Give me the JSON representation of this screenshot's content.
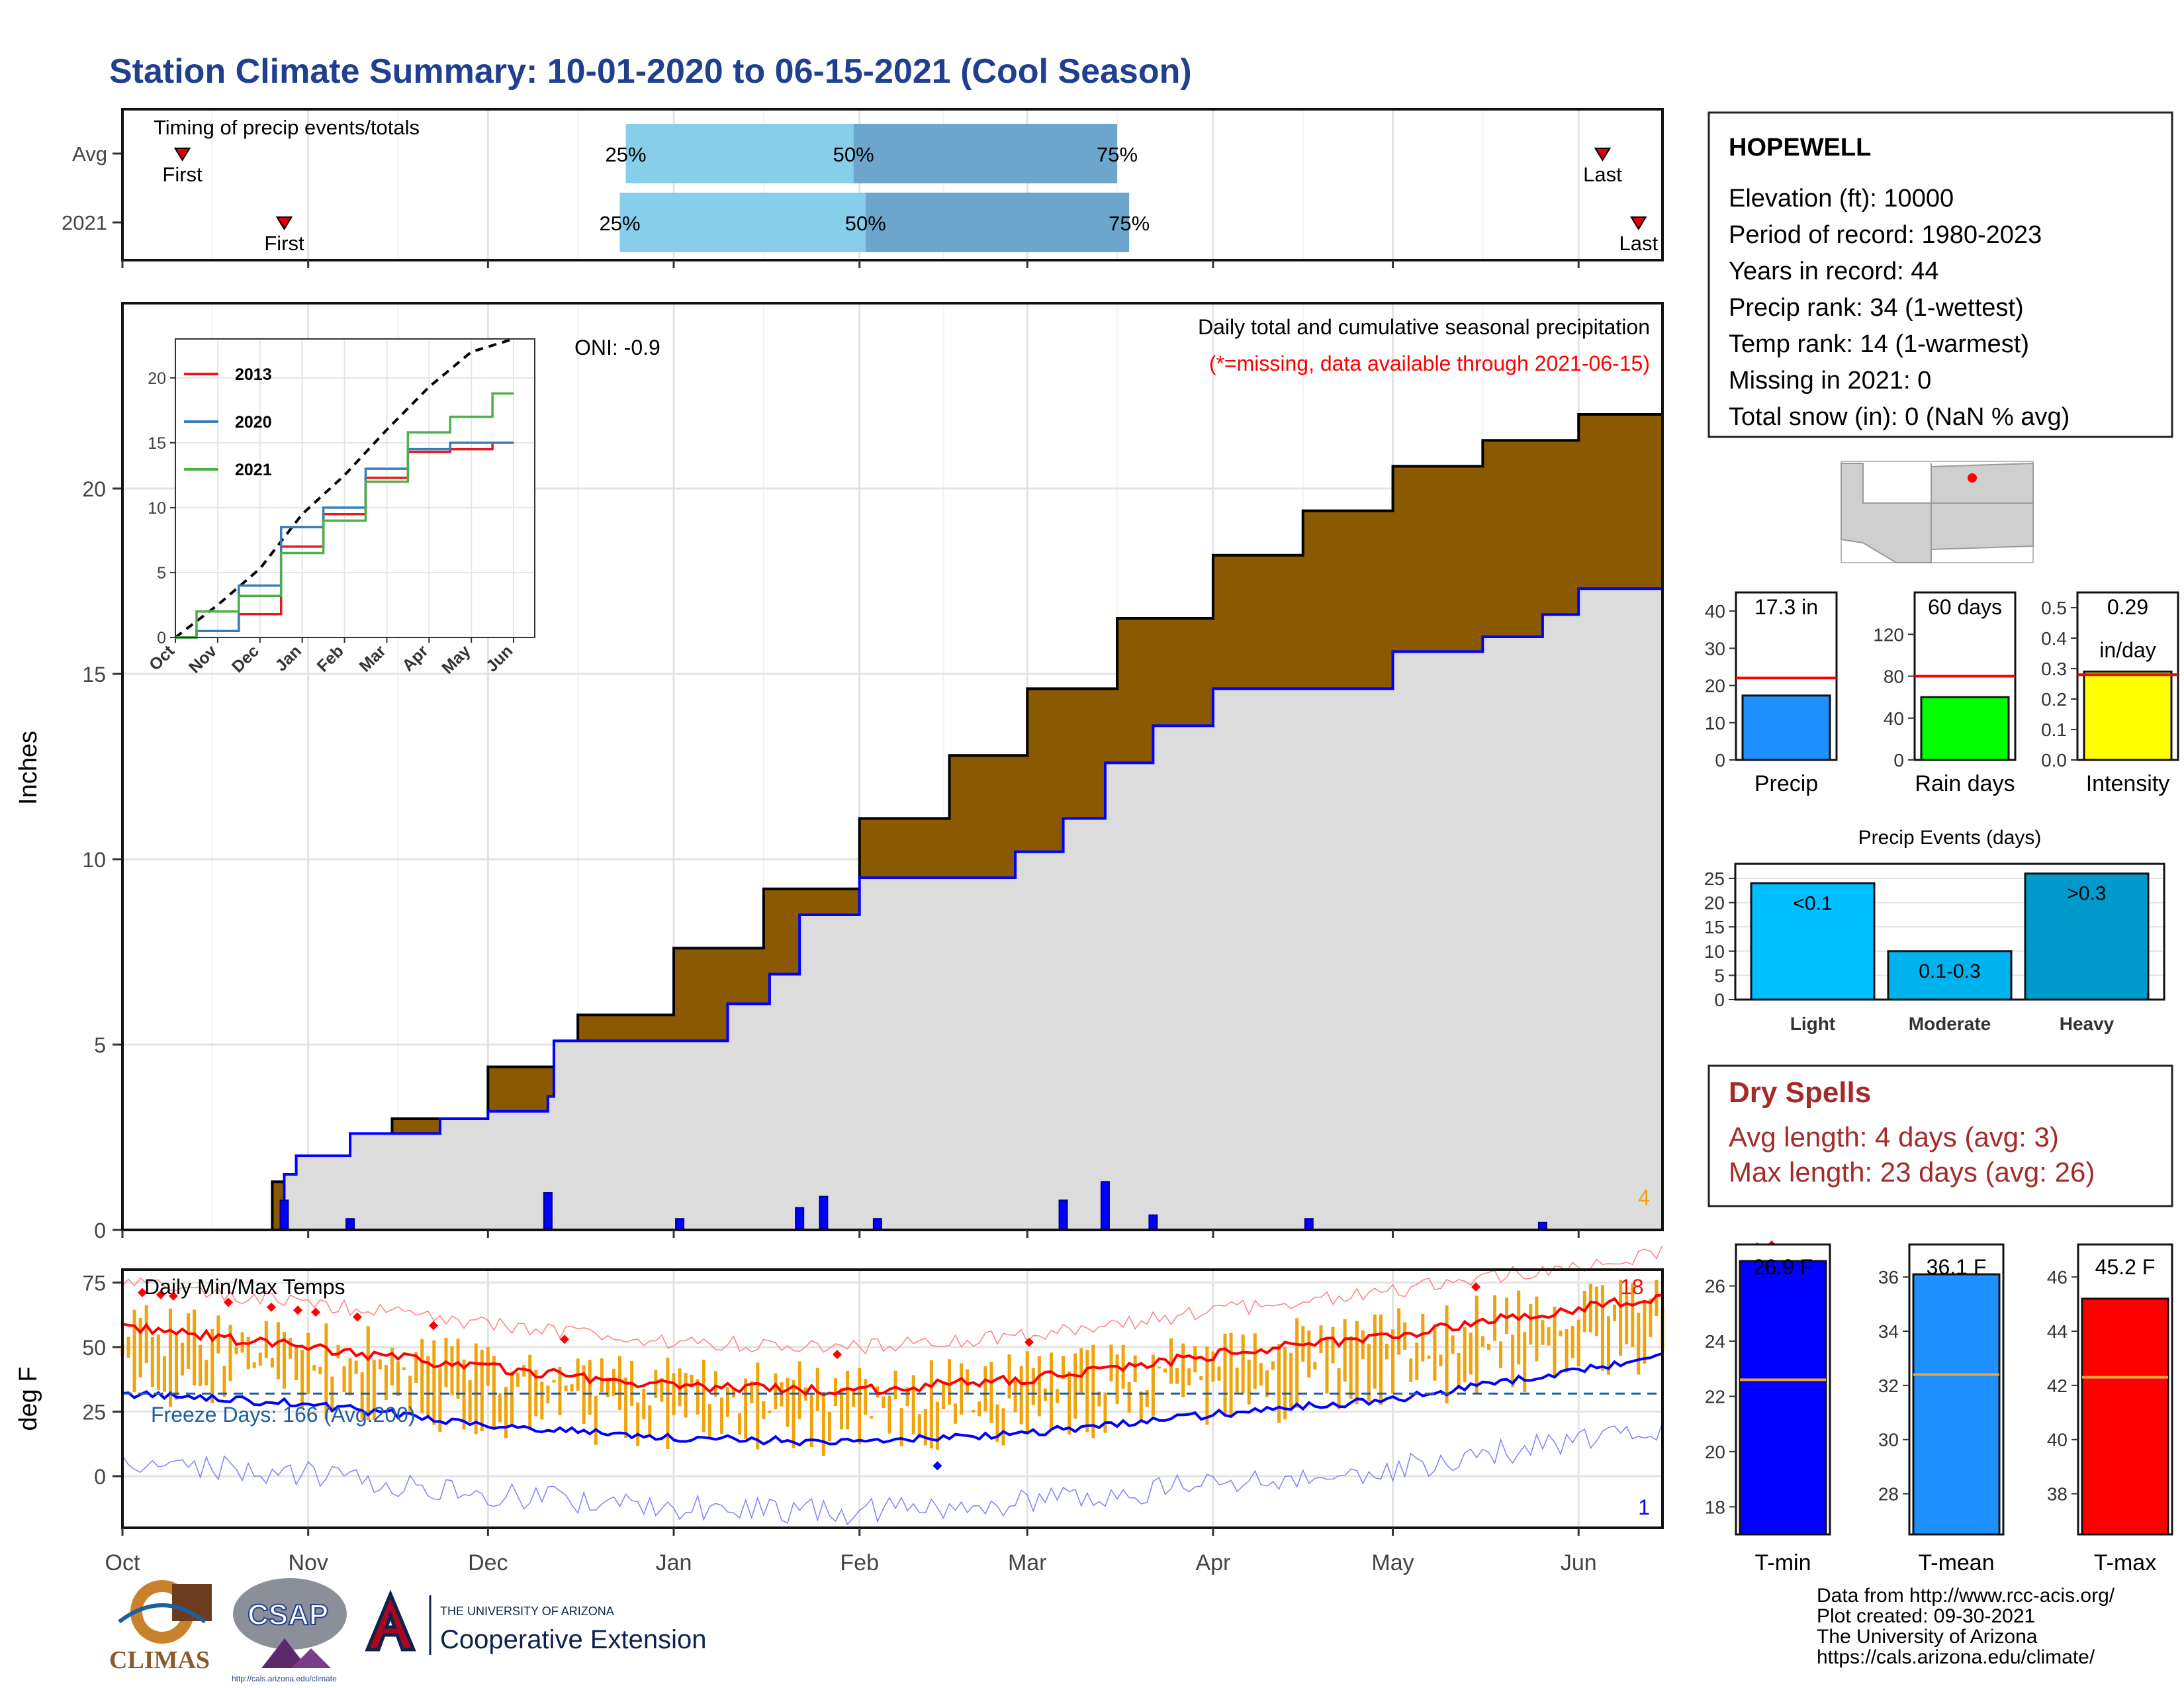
{
  "title": "Station Climate Summary: 10-01-2020 to 06-15-2021 (Cool Season)",
  "colors": {
    "title": "#1f3f8f",
    "precip_area": "#8b5a00",
    "precip_obs": "#dcdcdc",
    "obs_line": "#0000ff",
    "timing_light": "#87ceeb",
    "timing_dark": "#6ca6cd",
    "tmax": "#ff0000",
    "tmin": "#0000ff",
    "temp_bar": "#f0a30a",
    "dry": "#a52a2a",
    "freeze_line": "#1f5fa0"
  },
  "months": [
    "Oct",
    "Nov",
    "Dec",
    "Jan",
    "Feb",
    "Mar",
    "Apr",
    "May",
    "Jun"
  ],
  "timing": {
    "header": "Timing of precip events/totals",
    "rows": [
      {
        "label": "Avg",
        "p25": "25%",
        "p50": "50%",
        "p75": "75%",
        "first": "First",
        "last": "Last",
        "first_date": "2020-10-11",
        "p25_date": "2020-12-24",
        "p50_date": "2021-01-31",
        "p75_date": "2021-03-16",
        "last_date": "2021-06-05"
      },
      {
        "label": "2021",
        "p25": "25%",
        "p50": "50%",
        "p75": "75%",
        "first": "First",
        "last": "Last",
        "first_date": "2020-10-28",
        "p25_date": "2020-12-23",
        "p50_date": "2021-02-02",
        "p75_date": "2021-03-18",
        "last_date": "2021-06-11"
      }
    ]
  },
  "precip_panel": {
    "ylabel": "Inches",
    "yticks": [
      0,
      5,
      10,
      15,
      20
    ],
    "oni": "ONI: -0.9",
    "caption": "Daily total and cumulative seasonal precipitation",
    "missing_note": "(*=missing, data available through 2021-06-15)",
    "missing_count": "4"
  },
  "inset": {
    "legend": [
      "2013",
      "2020",
      "2021"
    ],
    "yticks": [
      0,
      5,
      10,
      15,
      20
    ],
    "months": [
      "Oct",
      "Nov",
      "Dec",
      "Jan",
      "Feb",
      "Mar",
      "Apr",
      "May",
      "Jun"
    ]
  },
  "temp_panel": {
    "header": "Daily Min/Max Temps",
    "ylabel": "deg F",
    "yticks": [
      0,
      25,
      50,
      75
    ],
    "freeze": "Freeze Days: 166 (Avg:200)",
    "count_max": "18",
    "count_min": "1"
  },
  "station": {
    "name": "HOPEWELL",
    "lines": [
      "Elevation (ft): 10000",
      "Period of record: 1980-2023",
      "Years in record: 44",
      "Precip rank: 34 (1-wettest)",
      "Temp rank: 14 (1-warmest)",
      "Missing in 2021: 0",
      "Total snow (in): 0 (NaN % avg)"
    ]
  },
  "small_bars": [
    {
      "label": "Precip",
      "value_text": "17.3 in",
      "value": 17.3,
      "avg": 22.0,
      "max": 45,
      "ticks": [
        0,
        10,
        20,
        30,
        40
      ],
      "color": "#1e90ff"
    },
    {
      "label": "Rain days",
      "value_text": "60 days",
      "value": 60,
      "avg": 80,
      "max": 160,
      "ticks": [
        0,
        40,
        80,
        120
      ],
      "color": "#00ff00"
    },
    {
      "label": "Intensity",
      "value_text": "0.29",
      "value_text2": "in/day",
      "value": 0.29,
      "avg": 0.28,
      "max": 0.55,
      "ticks": [
        "0.0",
        "0.1",
        "0.2",
        "0.3",
        "0.4",
        "0.5"
      ],
      "color": "#ffff00"
    }
  ],
  "events": {
    "title": "Precip Events (days)",
    "bars": [
      {
        "label": "Light",
        "inner": "<0.1",
        "value": 24,
        "color": "#00bfff"
      },
      {
        "label": "Moderate",
        "inner": "0.1-0.3",
        "value": 10,
        "color": "#00b2ee"
      },
      {
        "label": "Heavy",
        "inner": ">0.3",
        "value": 26,
        "color": "#009acd"
      }
    ],
    "ticks": [
      0,
      5,
      10,
      15,
      20,
      25
    ]
  },
  "dry": {
    "title": "Dry Spells",
    "avg": "Avg length: 4 days (avg: 3)",
    "max": "Max length: 23 days (avg: 26)"
  },
  "temp_bars": [
    {
      "label": "T-min",
      "value_text": "26.9 F",
      "value": 26.9,
      "avg": 22.6,
      "lo": 17,
      "hi": 27.5,
      "ticks": [
        18,
        20,
        22,
        24,
        26
      ],
      "color": "#0000ff"
    },
    {
      "label": "T-mean",
      "value_text": "36.1 F",
      "value": 36.1,
      "avg": 32.4,
      "lo": 26.5,
      "hi": 37.2,
      "ticks": [
        28,
        30,
        32,
        34,
        36
      ],
      "color": "#1e90ff"
    },
    {
      "label": "T-max",
      "value_text": "45.2 F",
      "value": 45.2,
      "avg": 42.3,
      "lo": 36.5,
      "hi": 47.2,
      "ticks": [
        38,
        40,
        42,
        44,
        46
      ],
      "color": "#ff0000"
    }
  ],
  "footer": {
    "source": "Data from http://www.rcc-acis.org/",
    "created": "Plot created: 09-30-2021",
    "org": "The University of Arizona",
    "url": "https://cals.arizona.edu/climate/"
  },
  "logos": {
    "climas": "CLIMAS",
    "csap": "CSAP",
    "ua_small": "THE UNIVERSITY OF ARIZONA",
    "ua_big": "Cooperative Extension",
    "csap_url": "http://cals.arizona.edu/climate"
  },
  "chart_data": [
    {
      "type": "area",
      "title": "Daily total and cumulative seasonal precipitation",
      "ylabel": "Inches",
      "x_range": [
        "2020-10-01",
        "2021-06-15"
      ],
      "ylim": [
        0,
        25
      ],
      "series": [
        {
          "name": "",
          "x": [
            "2020-10-01",
            "2020-10-26",
            "2020-10-31",
            "2020-11-15",
            "2020-12-01",
            "2020-12-16",
            "2021-01-01",
            "2021-01-16",
            "2021-02-01",
            "2021-02-16",
            "2021-03-01",
            "2021-03-16",
            "2021-04-01",
            "2021-04-16",
            "2021-05-01",
            "2021-05-16",
            "2021-06-01",
            "2021-06-15"
          ],
          "values": [
            0.0,
            1.3,
            2.0,
            3.0,
            4.4,
            5.8,
            7.6,
            9.2,
            11.1,
            12.8,
            14.6,
            16.5,
            18.2,
            19.4,
            20.6,
            21.3,
            22.0,
            22.7
          ]
        },
        {
          "name": "",
          "x": [
            "2020-10-01",
            "2020-10-26",
            "2020-10-28",
            "2020-10-30",
            "2020-11-08",
            "2020-11-23",
            "2020-12-01",
            "2020-12-11",
            "2020-12-12",
            "2021-01-01",
            "2021-01-10",
            "2021-01-17",
            "2021-01-22",
            "2021-02-01",
            "2021-02-15",
            "2021-02-27",
            "2021-03-07",
            "2021-03-14",
            "2021-03-22",
            "2021-04-01",
            "2021-04-17",
            "2021-05-01",
            "2021-05-16",
            "2021-05-26",
            "2021-06-01",
            "2021-06-15"
          ],
          "values": [
            0.0,
            0.0,
            1.5,
            2.0,
            2.6,
            3.0,
            3.2,
            3.6,
            5.1,
            5.1,
            6.1,
            6.9,
            8.5,
            9.5,
            9.5,
            10.2,
            11.1,
            12.6,
            13.6,
            14.6,
            14.6,
            15.6,
            16.0,
            16.6,
            17.3,
            17.3
          ]
        },
        {
          "name": "",
          "x": [
            "2020-10-28",
            "2020-11-08",
            "2020-12-11",
            "2021-01-02",
            "2021-01-22",
            "2021-01-26",
            "2021-02-04",
            "2021-03-07",
            "2021-03-14",
            "2021-03-22",
            "2021-04-17",
            "2021-05-26"
          ],
          "values": [
            0.8,
            0.3,
            1.0,
            0.3,
            0.6,
            0.9,
            0.3,
            0.8,
            1.3,
            0.4,
            0.3,
            0.2
          ]
        }
      ]
    },
    {
      "type": "line",
      "ylim": [
        0,
        23
      ],
      "x_range": [
        "Oct",
        "Jun"
      ],
      "series": [
        {
          "name": "",
          "x": [
            "Oct",
            "Nov",
            "Dec",
            "Jan",
            "Feb",
            "Mar",
            "Apr",
            "May",
            "Jun"
          ],
          "values": [
            0,
            2.5,
            5.3,
            9.5,
            12.5,
            16.0,
            19.3,
            22.0,
            23.0
          ]
        },
        {
          "name": "2013",
          "x": [
            "Oct",
            "Nov",
            "Dec",
            "Jan",
            "Feb",
            "Mar",
            "Apr",
            "May",
            "Jun"
          ],
          "values": [
            0,
            0.5,
            1.8,
            7.0,
            9.5,
            12.3,
            14.3,
            14.5,
            15.0
          ]
        },
        {
          "name": "2020",
          "x": [
            "Oct",
            "Nov",
            "Dec",
            "Jan",
            "Feb",
            "Mar",
            "Apr",
            "May",
            "Jun"
          ],
          "values": [
            0,
            0.5,
            4.0,
            8.5,
            10.0,
            13.0,
            14.5,
            15.0,
            15.0
          ]
        },
        {
          "name": "2021",
          "x": [
            "Oct",
            "Nov",
            "Dec",
            "Jan",
            "Feb",
            "Mar",
            "Apr",
            "May",
            "Jun"
          ],
          "values": [
            0,
            2.0,
            3.2,
            6.5,
            9.0,
            12.0,
            15.8,
            17.0,
            18.8
          ]
        }
      ]
    },
    {
      "type": "line",
      "title": "Daily Min/Max Temps",
      "ylabel": "deg F",
      "ylim": [
        -20,
        80
      ],
      "series": [
        {
          "name": "",
          "x": [
            "Oct",
            "Nov",
            "Dec",
            "Jan",
            "Feb",
            "Mar",
            "Apr",
            "May",
            "Jun"
          ],
          "values": [
            58,
            50,
            42,
            35,
            33,
            38,
            47,
            55,
            65
          ]
        },
        {
          "name": "",
          "x": [
            "Oct",
            "Nov",
            "Dec",
            "Jan",
            "Feb",
            "Mar",
            "Apr",
            "May",
            "Jun"
          ],
          "values": [
            32,
            28,
            20,
            15,
            13,
            17,
            24,
            30,
            41
          ]
        }
      ]
    },
    {
      "type": "bar",
      "categories": [
        "Precip"
      ],
      "values": [
        17.3
      ],
      "ylim": [
        0,
        45
      ]
    },
    {
      "type": "bar",
      "categories": [
        "Rain days"
      ],
      "values": [
        60
      ],
      "ylim": [
        0,
        160
      ]
    },
    {
      "type": "bar",
      "categories": [
        "Intensity"
      ],
      "values": [
        0.29
      ],
      "ylim": [
        0,
        0.55
      ]
    },
    {
      "type": "bar",
      "title": "Precip Events (days)",
      "categories": [
        "Light",
        "Moderate",
        "Heavy"
      ],
      "values": [
        24,
        10,
        26
      ],
      "ylim": [
        0,
        28
      ]
    },
    {
      "type": "bar",
      "categories": [
        "T-min",
        "T-mean",
        "T-max"
      ],
      "values": [
        26.9,
        36.1,
        45.2
      ]
    }
  ]
}
